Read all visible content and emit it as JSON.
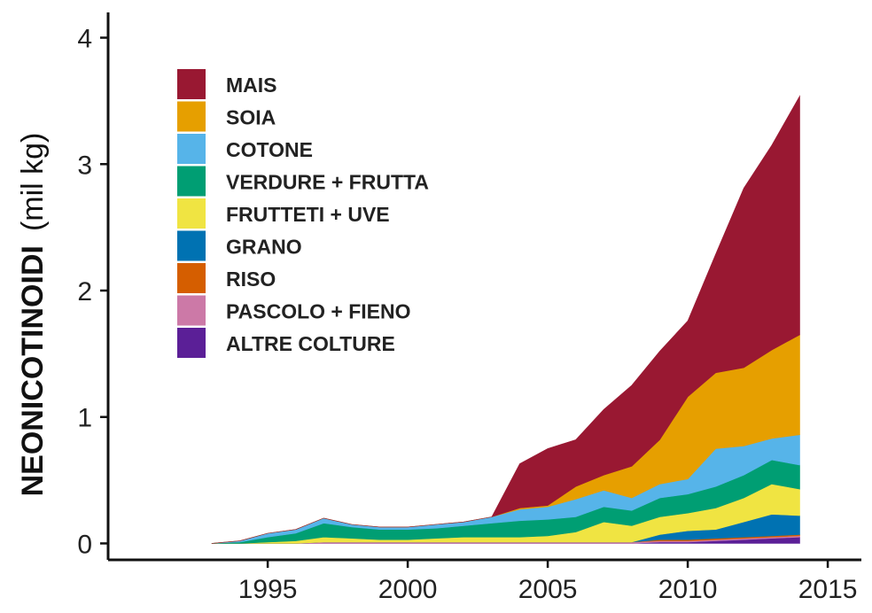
{
  "chart_data": {
    "type": "area",
    "stacked": true,
    "title": "",
    "ylabel": "NEONICOTINOIDI",
    "ylabel_unit": "(mil kg)",
    "xlabel": "",
    "xlim": [
      1989.3,
      2016.2
    ],
    "ylim": [
      -0.13,
      4.2
    ],
    "x_ticks": [
      1995,
      2000,
      2005,
      2010,
      2015
    ],
    "y_ticks": [
      0,
      1,
      2,
      3,
      4
    ],
    "legend_position": "top-left",
    "grid": false,
    "x": [
      1993,
      1994,
      1995,
      1996,
      1997,
      1998,
      1999,
      2000,
      2001,
      2002,
      2003,
      2004,
      2005,
      2006,
      2007,
      2008,
      2009,
      2010,
      2011,
      2012,
      2013,
      2014
    ],
    "series": [
      {
        "name": "ALTRE COLTURE",
        "color": "#5b1f97",
        "values": [
          0,
          0,
          0,
          0,
          0,
          0,
          0,
          0,
          0,
          0,
          0,
          0,
          0,
          0,
          0,
          0,
          0.01,
          0.01,
          0.02,
          0.03,
          0.04,
          0.05
        ]
      },
      {
        "name": "PASCOLO + FIENO",
        "color": "#cc79a7",
        "values": [
          0,
          0,
          0,
          0,
          0.01,
          0.01,
          0.01,
          0.01,
          0.01,
          0.01,
          0.01,
          0.01,
          0.01,
          0.01,
          0.01,
          0.01,
          0.01,
          0.01,
          0.01,
          0.01,
          0.01,
          0.01
        ]
      },
      {
        "name": "RISO",
        "color": "#d55e00",
        "values": [
          0,
          0,
          0,
          0,
          0,
          0,
          0,
          0,
          0,
          0,
          0,
          0,
          0,
          0,
          0,
          0,
          0.01,
          0.01,
          0.01,
          0.01,
          0.01,
          0.01
        ]
      },
      {
        "name": "GRANO",
        "color": "#0072b2",
        "values": [
          0,
          0,
          0,
          0,
          0,
          0,
          0,
          0,
          0,
          0,
          0,
          0,
          0,
          0,
          0,
          0,
          0.04,
          0.07,
          0.07,
          0.12,
          0.17,
          0.15
        ]
      },
      {
        "name": "FRUTTETI + UVE",
        "color": "#f0e442",
        "values": [
          0,
          0,
          0.01,
          0.02,
          0.04,
          0.03,
          0.02,
          0.02,
          0.03,
          0.04,
          0.04,
          0.04,
          0.05,
          0.08,
          0.16,
          0.13,
          0.14,
          0.14,
          0.17,
          0.19,
          0.24,
          0.21
        ]
      },
      {
        "name": "VERDURE + FRUTTA",
        "color": "#009e73",
        "values": [
          0,
          0.01,
          0.04,
          0.06,
          0.11,
          0.09,
          0.08,
          0.08,
          0.08,
          0.09,
          0.11,
          0.13,
          0.13,
          0.12,
          0.12,
          0.12,
          0.15,
          0.15,
          0.17,
          0.18,
          0.19,
          0.19
        ]
      },
      {
        "name": "COTONE",
        "color": "#56b4e9",
        "values": [
          0,
          0.01,
          0.03,
          0.03,
          0.04,
          0.02,
          0.02,
          0.02,
          0.03,
          0.03,
          0.05,
          0.09,
          0.1,
          0.14,
          0.13,
          0.1,
          0.11,
          0.12,
          0.3,
          0.23,
          0.17,
          0.24
        ]
      },
      {
        "name": "SOIA",
        "color": "#e69f00",
        "values": [
          0,
          0,
          0,
          0,
          0,
          0,
          0,
          0,
          0,
          0,
          0,
          0.01,
          0.01,
          0.1,
          0.12,
          0.25,
          0.35,
          0.65,
          0.6,
          0.62,
          0.7,
          0.79
        ]
      },
      {
        "name": "MAIS",
        "color": "#991832",
        "values": [
          0,
          0,
          0,
          0,
          0,
          0,
          0,
          0,
          0,
          0,
          0,
          0.35,
          0.45,
          0.37,
          0.52,
          0.64,
          0.7,
          0.6,
          0.94,
          1.42,
          1.62,
          1.89
        ]
      }
    ],
    "legend_order": [
      "MAIS",
      "SOIA",
      "COTONE",
      "VERDURE + FRUTTA",
      "FRUTTETI + UVE",
      "GRANO",
      "RISO",
      "PASCOLO + FIENO",
      "ALTRE COLTURE"
    ]
  }
}
